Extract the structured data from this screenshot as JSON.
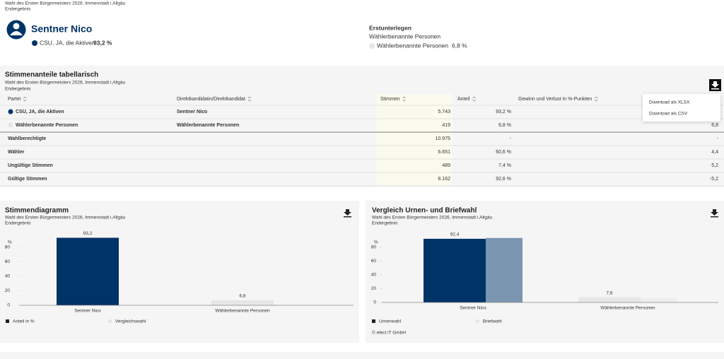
{
  "header": {
    "election": "Wahl des Ersten Bürgermeisters 2026, Immenstadt i.Allgäu",
    "status": "Endergebnis"
  },
  "winner": {
    "name": "Sentner Nico",
    "party": "CSU, JA, die Aktiven",
    "share": "93,2 %",
    "color": "#003366"
  },
  "runner_up": {
    "heading": "Erstunterlegen",
    "name": "Wählerbenannte Personen",
    "party": "Wählerbenannte Personen",
    "share": "6,8 %",
    "color": "#e6e6e6"
  },
  "table": {
    "title": "Stimmenanteile tabellarisch",
    "subtitle": "Wahl des Ersten Bürgermeisters 2026, Immenstadt i.Allgäu",
    "status": "Endergebnis",
    "columns": [
      "Partei",
      "Direktkandidatin/Direktkandidat",
      "Stimmen",
      "Anteil",
      "Gewinn und Verlust in %-Punkten"
    ],
    "rows": [
      {
        "party": "CSU, JA, die Aktiven",
        "color": "#003366",
        "candidate": "Sentner Nico",
        "votes": "5.743",
        "share": "93,2 %"
      },
      {
        "party": "Wählerbenannte Personen",
        "color": "#e6e6e6",
        "candidate": "Wählerbenannte Personen",
        "votes": "419",
        "share": "6,8 %",
        "change": "6,8"
      }
    ],
    "summary": [
      {
        "label": "Wahlberechtigte",
        "votes": "10.975",
        "share": "-",
        "change": "-"
      },
      {
        "label": "Wähler",
        "votes": "6.651",
        "share": "60,6 %",
        "change": "4,4"
      },
      {
        "label": "Ungültige Stimmen",
        "votes": "489",
        "share": "7,4 %",
        "change": "5,2"
      },
      {
        "label": "Gültige Stimmen",
        "votes": "6.162",
        "share": "92,6 %",
        "change": "-5,2"
      }
    ],
    "download_menu": [
      "Download als XLSX",
      "Download als CSV"
    ]
  },
  "chart_data": [
    {
      "type": "bar",
      "title": "Stimmendiagramm",
      "subtitle": "Wahl des Ersten Bürgermeisters 2026, Immenstadt i.Allgäu",
      "status": "Endergebnis",
      "y_label": "%",
      "categories": [
        "Sentner Nico",
        "Wählerbenannte Personen"
      ],
      "series": [
        {
          "name": "Anteil in %",
          "color": "#222222",
          "colors": [
            "#003366",
            "#e6e6e6"
          ],
          "values": [
            93.2,
            6.8
          ],
          "value_labels": [
            "93,2",
            "6,8"
          ]
        },
        {
          "name": "Vergleichswahl",
          "color": "#e6e6e6",
          "values": [
            null,
            null
          ]
        }
      ],
      "ylim": [
        0,
        100
      ],
      "yticks": [
        0,
        20,
        40,
        60,
        80
      ]
    },
    {
      "type": "bar",
      "title": "Vergleich Urnen- und Briefwahl",
      "subtitle": "Wahl des Ersten Bürgermeisters 2026, Immenstadt i.Allgäu",
      "status": "Endergebnis",
      "y_label": "%",
      "categories": [
        "Sentner Nico",
        "Wählerbenannte Personen"
      ],
      "series": [
        {
          "name": "Urnenwahl",
          "color": "#222222",
          "colors": [
            "#003366",
            "#e6e6e6"
          ],
          "values": [
            92.4,
            7.6
          ],
          "value_labels": [
            "92,4",
            "7,6"
          ]
        },
        {
          "name": "Briefwahl",
          "color": "#e6e6e6",
          "colors": [
            "#7a95b0",
            "#eeeeee"
          ],
          "values": [
            93.6,
            6.4
          ]
        }
      ],
      "ylim": [
        0,
        100
      ],
      "yticks": [
        0,
        20,
        40,
        60,
        80
      ],
      "footer": "© elect iT GmbH"
    }
  ]
}
